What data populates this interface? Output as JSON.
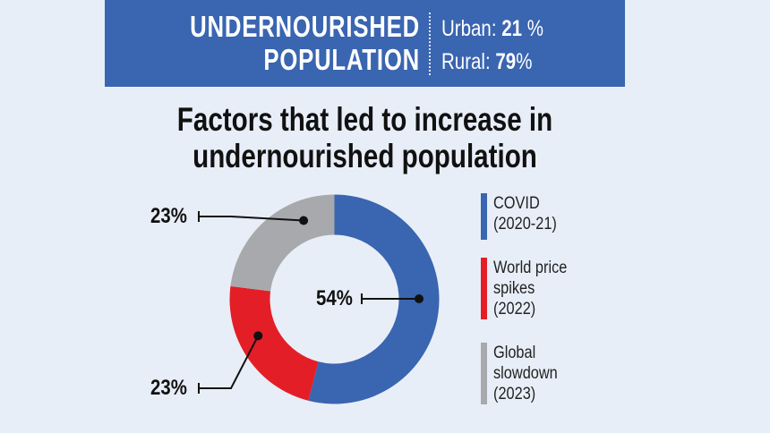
{
  "header": {
    "title_line1": "UNDERNOURISHED",
    "title_line2": "POPULATION",
    "urban_label": "Urban:",
    "urban_value": "21",
    "urban_unit": " %",
    "rural_label": "Rural:",
    "rural_value": "79",
    "rural_unit": "%"
  },
  "colors": {
    "banner": "#3a65b0",
    "covid": "#3a65b0",
    "price": "#e41e26",
    "slowdown": "#a7a9ac",
    "background": "#e8eef8"
  },
  "chart_data": {
    "type": "pie",
    "donut": true,
    "title": "Factors that led to increase in undernourished population",
    "title_line1": "Factors that led to increase in",
    "title_line2": "undernourished population",
    "slices": [
      {
        "label": "COVID (2020-21)",
        "label_lines": [
          "COVID",
          "(2020-21)"
        ],
        "value": 54,
        "value_label": "54%",
        "color": "#3a65b0"
      },
      {
        "label": "World price spikes (2022)",
        "label_lines": [
          "World price",
          "spikes",
          "(2022)"
        ],
        "value": 23,
        "value_label": "23%",
        "color": "#e41e26"
      },
      {
        "label": "Global slowdown (2023)",
        "label_lines": [
          "Global",
          "slowdown",
          "(2023)"
        ],
        "value": 23,
        "value_label": "23%",
        "color": "#a7a9ac"
      }
    ],
    "legend_position": "right"
  }
}
